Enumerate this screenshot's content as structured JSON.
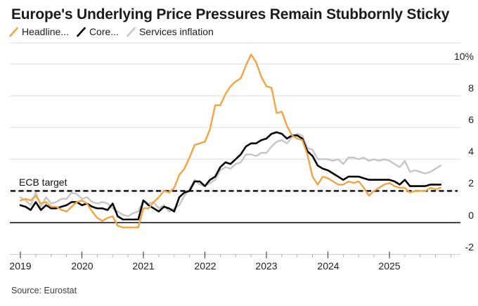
{
  "header": {
    "title": "Europe's Underlying Price Pressures Remain Stubbornly Sticky"
  },
  "footer": {
    "source": "Source: Eurostat"
  },
  "chart_data": {
    "type": "line",
    "title": "Europe's Underlying Price Pressures Remain Stubbornly Sticky",
    "source": "Source: Eurostat",
    "unit": "%",
    "frequency": "monthly",
    "x_start": "2019-01",
    "x_end": "2025-11",
    "x_tick_labels": [
      "2019",
      "2020",
      "2021",
      "2022",
      "2023",
      "2024",
      "2025"
    ],
    "y_ticks": [
      {
        "label": "10%",
        "value": 10
      },
      {
        "label": "8",
        "value": 8
      },
      {
        "label": "6",
        "value": 6
      },
      {
        "label": "4",
        "value": 4
      },
      {
        "label": "2",
        "value": 2
      },
      {
        "label": "0",
        "value": 0
      },
      {
        "label": "-2",
        "value": -2
      }
    ],
    "ylim": [
      -2,
      11.3
    ],
    "grid": "horizontal",
    "legend_position": "top-left",
    "target_line": {
      "label": "ECB target",
      "value": 2,
      "style": "dashed",
      "color": "#000000"
    },
    "colors": {
      "headline": "#F2A444",
      "core": "#000000",
      "services": "#C6C6C6",
      "gridline": "#DBDBDB",
      "zero_line": "#000000",
      "axis_baseline": "#C9C9C9"
    },
    "series": [
      {
        "name": "Headline...",
        "color": "#F2A444",
        "values": [
          1.4,
          1.5,
          1.4,
          1.7,
          1.2,
          1.3,
          1.0,
          1.0,
          0.8,
          0.7,
          1.0,
          1.3,
          1.4,
          1.2,
          0.7,
          0.3,
          0.1,
          0.3,
          0.4,
          -0.2,
          -0.3,
          -0.3,
          -0.3,
          -0.3,
          0.9,
          0.9,
          1.3,
          1.6,
          2.0,
          1.9,
          2.2,
          3.0,
          3.4,
          4.1,
          4.9,
          5.0,
          5.1,
          5.9,
          7.4,
          7.4,
          8.1,
          8.6,
          8.9,
          9.1,
          9.9,
          10.6,
          10.1,
          9.2,
          8.6,
          8.5,
          6.9,
          7.0,
          6.1,
          5.5,
          5.3,
          5.2,
          4.3,
          2.9,
          2.4,
          2.9,
          2.8,
          2.6,
          2.4,
          2.4,
          2.6,
          2.5,
          2.6,
          2.2,
          1.7,
          2.0,
          2.2,
          2.4,
          2.5,
          2.3,
          2.2,
          2.2,
          1.9,
          2.0,
          2.0,
          2.0,
          2.2,
          2.1,
          2.2
        ]
      },
      {
        "name": "Core...",
        "color": "#000000",
        "values": [
          1.1,
          1.0,
          0.8,
          1.3,
          0.8,
          1.1,
          0.9,
          0.9,
          1.0,
          1.1,
          1.3,
          1.3,
          1.1,
          1.2,
          1.0,
          0.9,
          0.9,
          0.8,
          1.2,
          0.4,
          0.2,
          0.2,
          0.2,
          0.2,
          1.4,
          1.1,
          0.9,
          0.7,
          1.0,
          0.9,
          0.7,
          1.6,
          1.9,
          2.0,
          2.6,
          2.6,
          2.3,
          2.7,
          2.9,
          3.5,
          3.8,
          3.7,
          4.0,
          4.3,
          4.8,
          5.0,
          5.0,
          5.2,
          5.3,
          5.6,
          5.7,
          5.6,
          5.3,
          5.5,
          5.5,
          5.3,
          4.5,
          4.2,
          3.6,
          3.4,
          3.3,
          3.1,
          2.9,
          2.7,
          2.9,
          2.9,
          2.9,
          2.8,
          2.7,
          2.7,
          2.7,
          2.7,
          2.7,
          2.6,
          2.4,
          2.7,
          2.3,
          2.3,
          2.3,
          2.3,
          2.4,
          2.4,
          2.4
        ]
      },
      {
        "name": "Services inflation",
        "color": "#C6C6C6",
        "values": [
          1.6,
          1.4,
          1.1,
          1.9,
          1.0,
          1.6,
          1.2,
          1.3,
          1.5,
          1.5,
          1.9,
          1.8,
          1.5,
          1.6,
          1.3,
          1.2,
          1.3,
          1.2,
          0.9,
          0.7,
          0.5,
          0.4,
          0.6,
          0.7,
          1.4,
          1.2,
          1.3,
          0.9,
          1.1,
          0.7,
          0.9,
          1.1,
          1.7,
          2.1,
          2.7,
          2.4,
          2.3,
          2.5,
          2.7,
          3.3,
          3.5,
          3.4,
          3.7,
          3.8,
          4.3,
          4.3,
          4.2,
          4.4,
          4.4,
          4.8,
          5.1,
          5.2,
          5.0,
          5.4,
          5.6,
          5.5,
          4.7,
          4.6,
          4.0,
          4.0,
          4.0,
          3.9,
          4.0,
          3.7,
          4.1,
          4.1,
          4.0,
          4.1,
          3.9,
          4.0,
          3.9,
          4.0,
          3.9,
          3.7,
          3.5,
          3.9,
          3.2,
          3.3,
          3.2,
          3.1,
          3.2,
          3.4,
          3.6
        ]
      }
    ]
  }
}
